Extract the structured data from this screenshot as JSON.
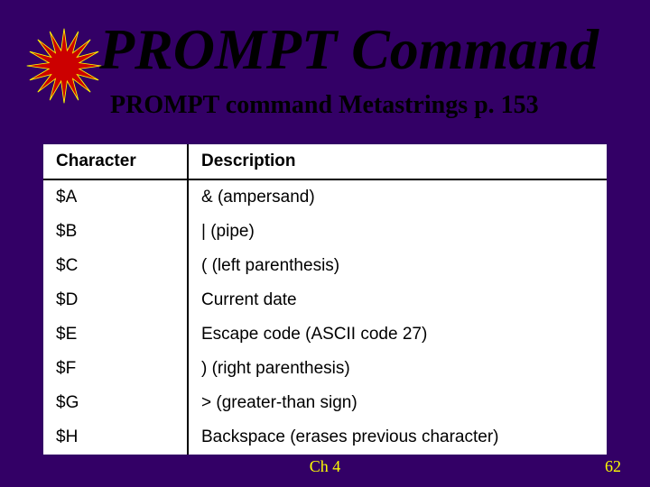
{
  "slide": {
    "background_color": "#330066",
    "title": {
      "text": "PROMPT Command",
      "color": "#000000",
      "fontsize": 64
    },
    "subtitle": {
      "text": "PROMPT command Metastrings p. 153",
      "color": "#000000",
      "fontsize": 28
    },
    "star_icon": {
      "fill_color": "#cc0000",
      "outline_color": "#ffff00"
    }
  },
  "table": {
    "background_color": "#ffffff",
    "text_color": "#000000",
    "fontsize": 19,
    "columns": [
      "Character",
      "Description"
    ],
    "rows": [
      [
        "$A",
        "& (ampersand)"
      ],
      [
        "$B",
        "| (pipe)"
      ],
      [
        "$C",
        "( (left parenthesis)"
      ],
      [
        "$D",
        "Current date"
      ],
      [
        "$E",
        "Escape code (ASCII code 27)"
      ],
      [
        "$F",
        ") (right parenthesis)"
      ],
      [
        "$G",
        "> (greater-than sign)"
      ],
      [
        "$H",
        "Backspace (erases previous character)"
      ]
    ]
  },
  "footer": {
    "chapter": "Ch 4",
    "page_number": "62",
    "color": "#ffff00",
    "fontsize": 18
  }
}
